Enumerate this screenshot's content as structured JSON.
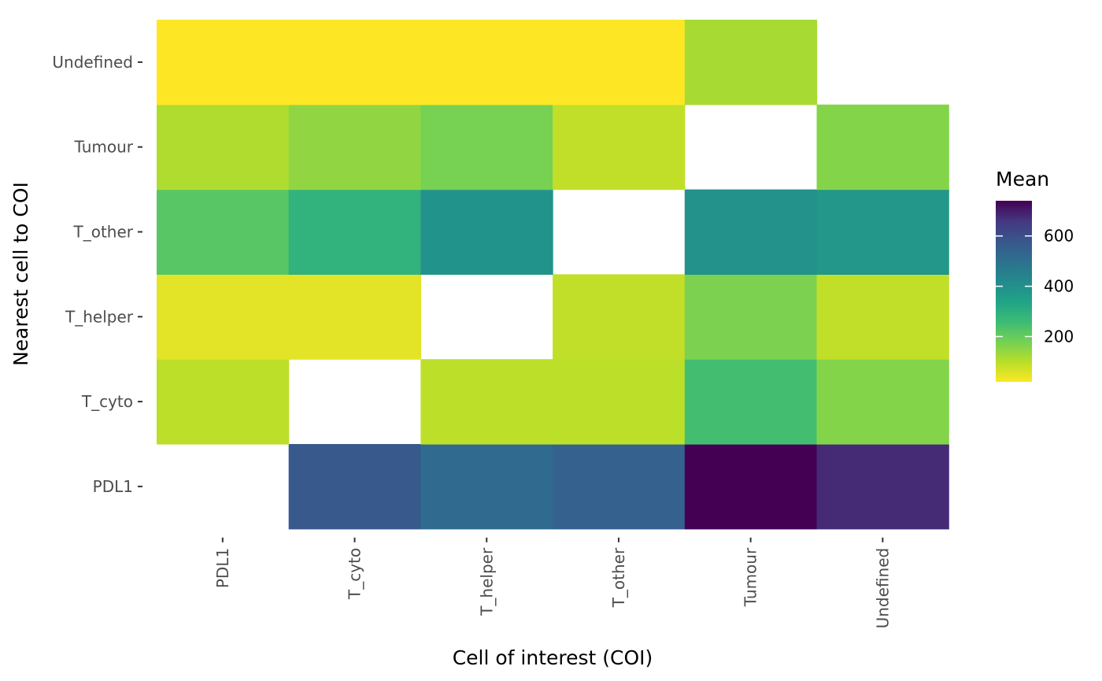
{
  "chart_data": {
    "type": "heatmap",
    "xlabel": "Cell of interest (COI)",
    "ylabel": "Nearest cell to COI",
    "x_categories": [
      "PDL1",
      "T_cyto",
      "T_helper",
      "T_other",
      "Tumour",
      "Undefined"
    ],
    "y_categories": [
      "PDL1",
      "T_cyto",
      "T_helper",
      "T_other",
      "Tumour",
      "Undefined"
    ],
    "values": [
      [
        null,
        570,
        520,
        545,
        740,
        680
      ],
      [
        95,
        null,
        95,
        95,
        250,
        160
      ],
      [
        50,
        50,
        null,
        90,
        170,
        90
      ],
      [
        220,
        290,
        390,
        null,
        395,
        380
      ],
      [
        110,
        145,
        175,
        90,
        null,
        160
      ],
      [
        20,
        20,
        20,
        20,
        120,
        null
      ]
    ],
    "legend": {
      "title": "Mean",
      "ticks": [
        200,
        400,
        600
      ],
      "range": [
        20,
        740
      ],
      "palette": [
        "#fde725",
        "#b8de29",
        "#73d055",
        "#3cbb75",
        "#20a387",
        "#238a8d",
        "#2d708e",
        "#39568c",
        "#453781",
        "#440154"
      ],
      "position": "right"
    },
    "grid": false,
    "missing_color": "#ffffff"
  }
}
